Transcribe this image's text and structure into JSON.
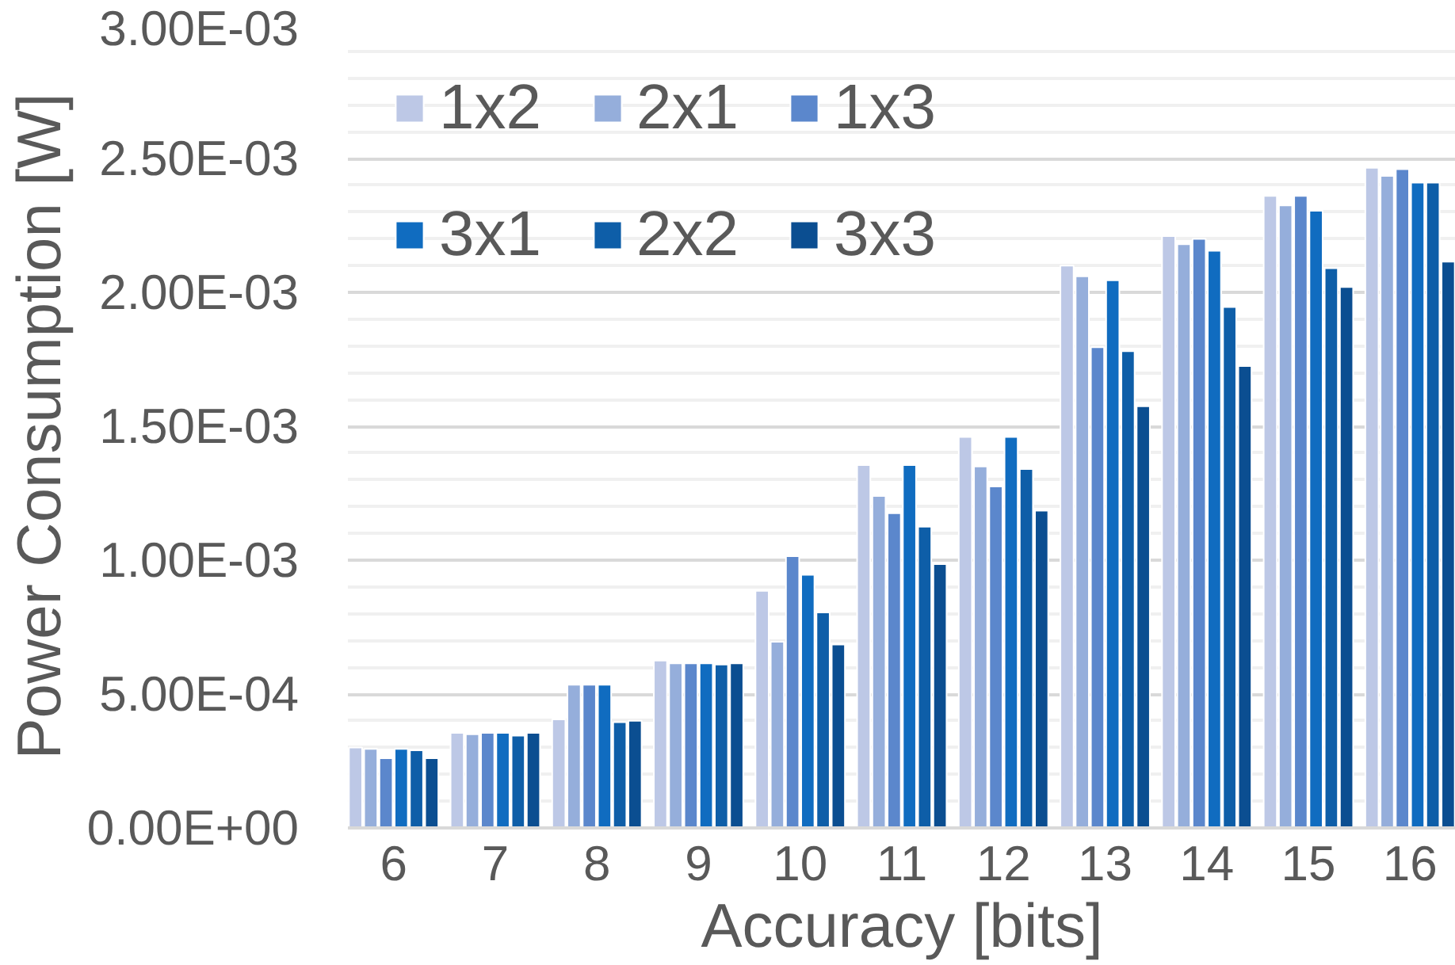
{
  "chart_data": {
    "type": "bar",
    "xlabel": "Accuracy [bits]",
    "ylabel": "Power Consumption [W]",
    "categories": [
      "6",
      "7",
      "8",
      "9",
      "10",
      "11",
      "12",
      "13",
      "14",
      "15",
      "16"
    ],
    "series": [
      {
        "name": "1x2",
        "color": "#bdc8e6",
        "values": [
          0.0003,
          0.000355,
          0.000405,
          0.000625,
          0.000885,
          0.001355,
          0.00146,
          0.0021,
          0.00221,
          0.00236,
          0.002465
        ]
      },
      {
        "name": "2x1",
        "color": "#95aedb",
        "values": [
          0.000295,
          0.00035,
          0.000535,
          0.000615,
          0.000695,
          0.00124,
          0.00135,
          0.00206,
          0.00218,
          0.002325,
          0.002435
        ]
      },
      {
        "name": "1x3",
        "color": "#5b87cc",
        "values": [
          0.00026,
          0.000355,
          0.000535,
          0.000615,
          0.001015,
          0.001175,
          0.001275,
          0.001795,
          0.0022,
          0.00236,
          0.00246
        ]
      },
      {
        "name": "3x1",
        "color": "#106cc0",
        "values": [
          0.000295,
          0.000355,
          0.000535,
          0.000615,
          0.000945,
          0.001355,
          0.00146,
          0.002045,
          0.002155,
          0.002305,
          0.00241
        ]
      },
      {
        "name": "2x2",
        "color": "#0e5ea8",
        "values": [
          0.00029,
          0.000345,
          0.000395,
          0.00061,
          0.000805,
          0.001125,
          0.00134,
          0.00178,
          0.001945,
          0.00209,
          0.00241
        ]
      },
      {
        "name": "3x3",
        "color": "#0b4e91",
        "values": [
          0.00026,
          0.000355,
          0.0004,
          0.000615,
          0.000685,
          0.000985,
          0.001185,
          0.001575,
          0.001725,
          0.00202,
          0.002115
        ]
      }
    ],
    "ylim": [
      0,
      0.003
    ],
    "yticks": [
      {
        "value": 0,
        "label": "0.00E+00"
      },
      {
        "value": 0.0005,
        "label": "5.00E-04"
      },
      {
        "value": 0.001,
        "label": "1.00E-03"
      },
      {
        "value": 0.0015,
        "label": "1.50E-03"
      },
      {
        "value": 0.002,
        "label": "2.00E-03"
      },
      {
        "value": 0.0025,
        "label": "2.50E-03"
      },
      {
        "value": 0.003,
        "label": "3.00E-03"
      }
    ],
    "grid": "y",
    "legend": "top left"
  }
}
